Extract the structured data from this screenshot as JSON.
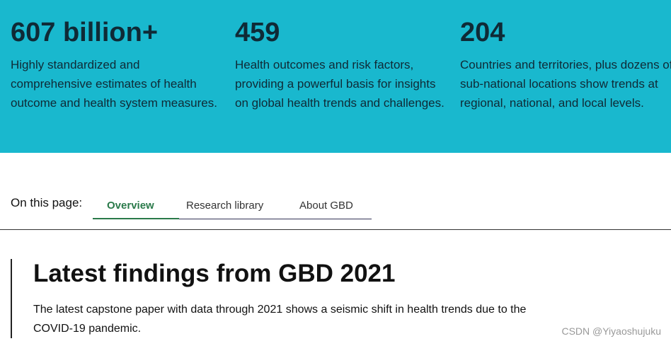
{
  "stats": [
    {
      "value": "607 billion+",
      "lines": [
        "Highly standardized and",
        "comprehensive estimates of health",
        "outcome and health system measures."
      ]
    },
    {
      "value": "459",
      "lines": [
        "Health outcomes and risk factors,",
        "providing a powerful basis for insights",
        "on global health trends and challenges."
      ]
    },
    {
      "value": "204",
      "lines": [
        "Countries and territories, plus dozens of",
        "sub-national locations show trends at",
        "regional, national, and local levels."
      ]
    }
  ],
  "nav": {
    "label": "On this page:",
    "tabs": [
      "Overview",
      "Research library",
      "About GBD"
    ]
  },
  "section": {
    "title": "Latest findings from GBD 2021",
    "lines": [
      "The latest capstone paper with data through 2021 shows a seismic shift in health trends due to the",
      "COVID-19 pandemic."
    ]
  },
  "watermark": "CSDN @Yiyaoshujuku"
}
